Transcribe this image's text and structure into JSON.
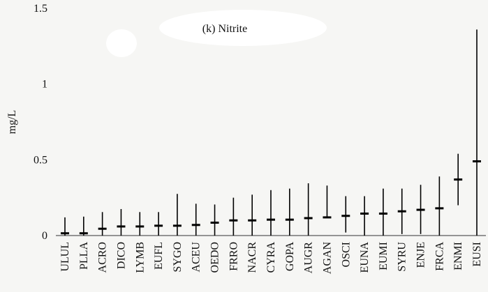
{
  "chart_data": {
    "type": "range",
    "title": "(k) Nitrite",
    "y_label": "mg/L",
    "categories": [
      "ULUL",
      "PLLA",
      "ACRO",
      "DICO",
      "LYMB",
      "EUFL",
      "SYGO",
      "ACEU",
      "OEDO",
      "FRRO",
      "NACR",
      "CYRA",
      "GOPA",
      "AUGR",
      "AGAN",
      "OSCI",
      "EUNA",
      "EUMI",
      "SYRU",
      "ENJE",
      "FRCA",
      "ENMI",
      "EUSI"
    ],
    "values": [
      0.015,
      0.015,
      0.045,
      0.06,
      0.06,
      0.065,
      0.065,
      0.07,
      0.085,
      0.1,
      0.1,
      0.105,
      0.105,
      0.115,
      0.12,
      0.13,
      0.145,
      0.145,
      0.16,
      0.17,
      0.18,
      0.37,
      0.49
    ],
    "lows": [
      0,
      0,
      0,
      0,
      0,
      0,
      0,
      0,
      0,
      0,
      0,
      0,
      0,
      0,
      0.12,
      0.02,
      0,
      0,
      0.01,
      0.01,
      0,
      0.2,
      0
    ],
    "highs": [
      0.12,
      0.125,
      0.155,
      0.175,
      0.155,
      0.155,
      0.275,
      0.21,
      0.205,
      0.25,
      0.27,
      0.3,
      0.31,
      0.345,
      0.33,
      0.26,
      0.26,
      0.31,
      0.31,
      0.335,
      0.39,
      0.54,
      1.36
    ],
    "color": "#000000",
    "ylim": [
      0,
      1.5
    ],
    "yticks": [
      0,
      0.5,
      1,
      1.5
    ]
  }
}
